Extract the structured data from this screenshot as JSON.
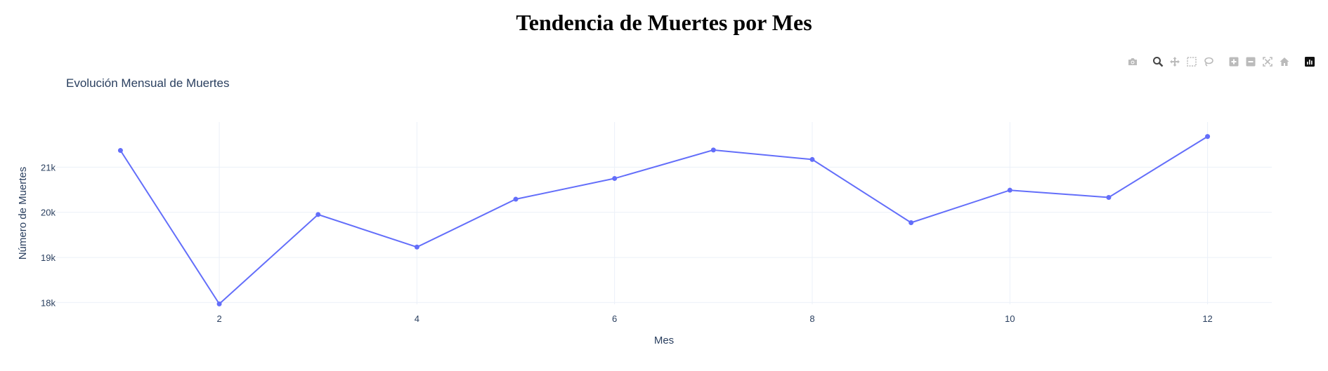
{
  "page": {
    "title": "Tendencia de Muertes por Mes"
  },
  "modebar": {
    "buttons": [
      {
        "name": "camera-icon"
      },
      {
        "name": "zoom-icon",
        "active": true
      },
      {
        "name": "pan-icon"
      },
      {
        "name": "box-select-icon"
      },
      {
        "name": "lasso-select-icon"
      },
      {
        "name": "zoom-in-icon"
      },
      {
        "name": "zoom-out-icon"
      },
      {
        "name": "autoscale-icon"
      },
      {
        "name": "reset-axes-icon"
      },
      {
        "name": "plotly-logo-icon"
      }
    ]
  },
  "chart_data": {
    "type": "line",
    "title": "Evolución Mensual de Muertes",
    "xlabel": "Mes",
    "ylabel": "Número de Muertes",
    "x": [
      1,
      2,
      3,
      4,
      5,
      6,
      7,
      8,
      9,
      10,
      11,
      12
    ],
    "values": [
      21370,
      17970,
      19950,
      19230,
      20290,
      20750,
      21380,
      21170,
      19770,
      20490,
      20330,
      21680
    ],
    "xlim": [
      0.35,
      12.65
    ],
    "ylim": [
      17960,
      22000
    ],
    "xticks": [
      2,
      4,
      6,
      8,
      10,
      12
    ],
    "xtick_labels": [
      "2",
      "4",
      "6",
      "8",
      "10",
      "12"
    ],
    "yticks": [
      18000,
      19000,
      20000,
      21000
    ],
    "ytick_labels": [
      "18k",
      "19k",
      "20k",
      "21k"
    ],
    "grid": true,
    "color": "#636efa"
  }
}
